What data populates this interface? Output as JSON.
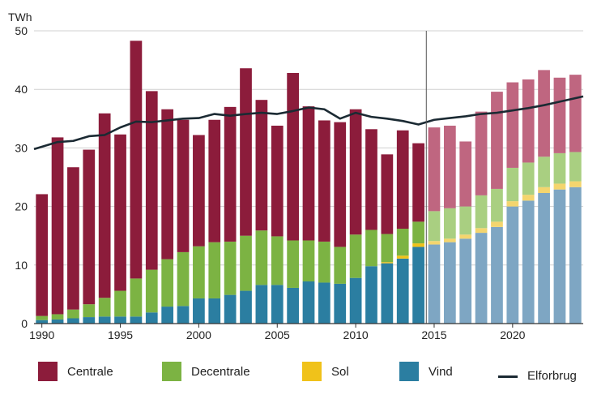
{
  "chart_data": {
    "type": "bar",
    "stacked": true,
    "unit_label": "TWh",
    "ylim": [
      0,
      50
    ],
    "yticks": [
      0,
      10,
      20,
      30,
      40,
      50
    ],
    "x": [
      1990,
      1991,
      1992,
      1993,
      1994,
      1995,
      1996,
      1997,
      1998,
      1999,
      2000,
      2001,
      2002,
      2003,
      2004,
      2005,
      2006,
      2007,
      2008,
      2009,
      2010,
      2011,
      2012,
      2013,
      2014,
      2015,
      2016,
      2017,
      2018,
      2019,
      2020,
      2021,
      2022,
      2023,
      2024
    ],
    "xticks": [
      1990,
      1995,
      2000,
      2005,
      2010,
      2015,
      2020
    ],
    "projection_start": 2015,
    "grid": "horizontal",
    "legend_position": "bottom",
    "series": [
      {
        "name": "Vind",
        "color": "#2b7ea1",
        "projected_color": "#7ea6c3",
        "values": [
          0.6,
          0.7,
          0.9,
          1.1,
          1.2,
          1.2,
          1.2,
          1.9,
          2.9,
          3.0,
          4.3,
          4.3,
          4.9,
          5.6,
          6.6,
          6.6,
          6.1,
          7.2,
          7.0,
          6.8,
          7.8,
          9.8,
          10.3,
          11.1,
          13.1,
          13.5,
          13.9,
          14.5,
          15.5,
          16.5,
          20.0,
          21.0,
          22.3,
          22.9,
          23.3
        ]
      },
      {
        "name": "Sol",
        "color": "#f0c21a",
        "projected_color": "#f4d56e",
        "values": [
          0,
          0,
          0,
          0,
          0,
          0,
          0,
          0,
          0,
          0,
          0,
          0,
          0,
          0,
          0,
          0,
          0,
          0,
          0,
          0,
          0,
          0,
          0.2,
          0.5,
          0.6,
          0.6,
          0.6,
          0.7,
          0.8,
          0.9,
          0.9,
          1.0,
          1.0,
          1.0,
          1.0
        ]
      },
      {
        "name": "Decentrale",
        "color": "#7cb343",
        "projected_color": "#a9cf81",
        "values": [
          0.7,
          0.9,
          1.5,
          2.2,
          3.2,
          4.4,
          6.5,
          7.3,
          8.1,
          9.2,
          8.9,
          9.6,
          9.1,
          9.4,
          9.3,
          8.3,
          8.1,
          7.0,
          7.0,
          6.3,
          7.4,
          6.2,
          4.8,
          4.6,
          3.7,
          5.1,
          5.2,
          4.8,
          5.6,
          5.6,
          5.7,
          5.5,
          5.2,
          5.2,
          5.0
        ]
      },
      {
        "name": "Centrale",
        "color": "#8c1c3b",
        "projected_color": "#bf6680",
        "values": [
          20.8,
          30.2,
          24.3,
          26.4,
          31.5,
          26.7,
          40.6,
          30.5,
          25.6,
          22.6,
          19.0,
          20.9,
          23.0,
          28.6,
          22.3,
          18.9,
          28.6,
          22.9,
          20.7,
          21.3,
          21.4,
          17.2,
          13.6,
          16.8,
          13.4,
          14.3,
          14.1,
          11.1,
          14.3,
          16.6,
          14.6,
          14.2,
          14.8,
          12.9,
          13.2
        ]
      }
    ],
    "line": {
      "name": "Elforbrug",
      "color": "#1b2a33",
      "values": [
        29.8,
        31.0,
        31.2,
        32.0,
        32.2,
        33.5,
        34.5,
        34.4,
        34.7,
        35.0,
        35.1,
        35.8,
        35.5,
        35.8,
        36.0,
        35.8,
        36.3,
        36.9,
        36.6,
        35.0,
        36.0,
        35.3,
        35.0,
        34.6,
        34.0,
        34.8,
        35.1,
        35.4,
        35.8,
        36.0,
        36.4,
        36.8,
        37.3,
        37.9,
        38.8
      ]
    }
  },
  "legend": {
    "centrale": "Centrale",
    "decentrale": "Decentrale",
    "sol": "Sol",
    "vind": "Vind",
    "elforbrug": "Elforbrug"
  },
  "colors": {
    "centrale": "#8c1c3b",
    "decentrale": "#7cb343",
    "sol": "#f0c21a",
    "vind": "#2b7ea1",
    "elforbrug": "#1b2a33"
  }
}
